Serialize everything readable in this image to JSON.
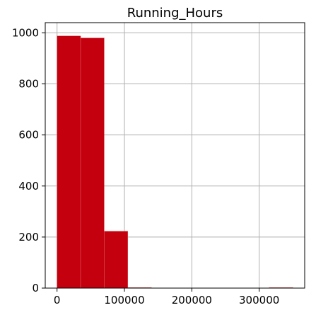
{
  "chart_data": {
    "type": "bar",
    "title": "Running_Hours",
    "xlabel": "",
    "ylabel": "",
    "bin_edges": [
      0,
      35000,
      70000,
      105000,
      140000,
      175000,
      210000,
      245000,
      280000,
      315000,
      350000
    ],
    "values": [
      988,
      980,
      223,
      1,
      0,
      0,
      0,
      0,
      0,
      1
    ],
    "xlim": [
      -17500,
      367500
    ],
    "ylim": [
      0,
      1040
    ],
    "xticks": [
      0,
      100000,
      200000,
      300000
    ],
    "xtick_labels": [
      "0",
      "100000",
      "200000",
      "300000"
    ],
    "yticks": [
      0,
      200,
      400,
      600,
      800,
      1000
    ],
    "ytick_labels": [
      "0",
      "200",
      "400",
      "600",
      "800",
      "1000"
    ],
    "grid": true,
    "bar_color": "#c4000f",
    "bar_edge_color": "#e05a5a"
  }
}
